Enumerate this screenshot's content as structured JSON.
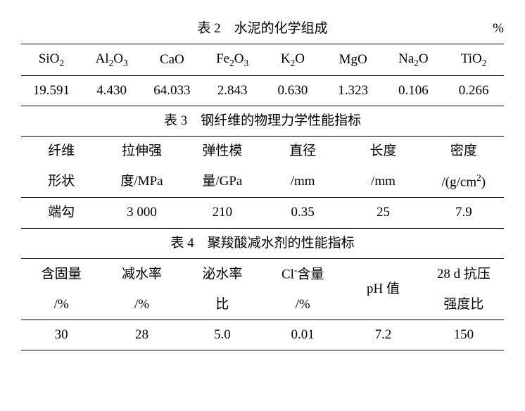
{
  "table2": {
    "caption": "表 2　水泥的化学组成",
    "unit": "%",
    "headers": [
      "SiO₂",
      "Al₂O₃",
      "CaO",
      "Fe₂O₃",
      "K₂O",
      "MgO",
      "Na₂O",
      "TiO₂"
    ],
    "values": [
      "19.591",
      "4.430",
      "64.033",
      "2.843",
      "0.630",
      "1.323",
      "0.106",
      "0.266"
    ]
  },
  "table3": {
    "caption": "表 3　钢纤维的物理力学性能指标",
    "headers_line1": [
      "纤维",
      "拉伸强",
      "弹性模",
      "直径",
      "长度",
      "密度"
    ],
    "headers_line2": [
      "形状",
      "度/MPa",
      "量/GPa",
      "/mm",
      "/mm",
      "/(g/cm²)"
    ],
    "values": [
      "端勾",
      "3 000",
      "210",
      "0.35",
      "25",
      "7.9"
    ]
  },
  "table4": {
    "caption": "表 4　聚羧酸减水剂的性能指标",
    "headers_line1": [
      "含固量",
      "减水率",
      "泌水率",
      "Cl⁻含量",
      "",
      "28 d 抗压"
    ],
    "headers_line2": [
      "/%",
      "/%",
      "比",
      "/%",
      "",
      "强度比"
    ],
    "header_merged": "pH 值",
    "values": [
      "30",
      "28",
      "5.0",
      "0.01",
      "7.2",
      "150"
    ]
  }
}
